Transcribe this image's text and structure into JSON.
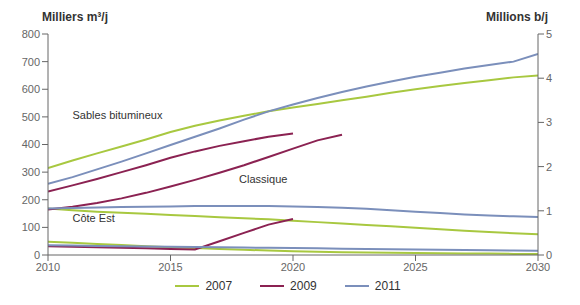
{
  "chart_data": {
    "type": "line",
    "ylabel": "Milliers m³/j",
    "y2label": "Millions b/j",
    "x": [
      2010,
      2011,
      2012,
      2013,
      2014,
      2015,
      2016,
      2017,
      2018,
      2019,
      2020,
      2021,
      2022,
      2023,
      2024,
      2025,
      2026,
      2027,
      2028,
      2029,
      2030
    ],
    "series": [
      {
        "name": "2007",
        "color": "#a8c840",
        "values": [
          315,
          342,
          368,
          393,
          418,
          445,
          468,
          487,
          504,
          520,
          534,
          547,
          560,
          573,
          587,
          600,
          612,
          623,
          633,
          643,
          650
        ]
      },
      {
        "name": "2009",
        "color": "#8b2252",
        "values": [
          230,
          252,
          275,
          300,
          325,
          352,
          375,
          395,
          412,
          428,
          440,
          null,
          null,
          null,
          null,
          null,
          null,
          null,
          null,
          null,
          null
        ]
      },
      {
        "name": "2011",
        "color": "#7b8fbb",
        "values": [
          258,
          282,
          310,
          338,
          368,
          398,
          428,
          458,
          490,
          520,
          545,
          568,
          590,
          610,
          628,
          645,
          660,
          675,
          688,
          700,
          728
        ]
      },
      {
        "name": "2007",
        "color": "#a8c840",
        "values": [
          168,
          162,
          157,
          153,
          149,
          145,
          141,
          137,
          133,
          129,
          124,
          119,
          114,
          109,
          104,
          99,
          93,
          88,
          83,
          79,
          75
        ]
      },
      {
        "name": "2009",
        "color": "#8b2252",
        "values": [
          165,
          175,
          188,
          205,
          225,
          248,
          272,
          298,
          325,
          355,
          385,
          415,
          435,
          null,
          null,
          null,
          null,
          null,
          null,
          null,
          null
        ]
      },
      {
        "name": "2011",
        "color": "#7b8fbb",
        "values": [
          168,
          170,
          172,
          174,
          175,
          176,
          177,
          177,
          177,
          177,
          176,
          174,
          171,
          167,
          162,
          157,
          152,
          147,
          143,
          140,
          138
        ]
      },
      {
        "name": "2007",
        "color": "#a8c840",
        "values": [
          48,
          44,
          40,
          36,
          32,
          28,
          25,
          22,
          19,
          16,
          14,
          12,
          10,
          9,
          8,
          7,
          6,
          5,
          5,
          4,
          4
        ]
      },
      {
        "name": "2009",
        "color": "#8b2252",
        "values": [
          32,
          30,
          28,
          26,
          24,
          22,
          20,
          50,
          80,
          110,
          130,
          null,
          null,
          null,
          null,
          null,
          null,
          null,
          null,
          null,
          null
        ]
      },
      {
        "name": "2011",
        "color": "#7b8fbb",
        "values": [
          35,
          34,
          33,
          32,
          31,
          30,
          29,
          28,
          27,
          26,
          25,
          24,
          23,
          22,
          21,
          20,
          19,
          18,
          17,
          16,
          15
        ]
      }
    ],
    "xlim": [
      2010,
      2030
    ],
    "xticks": [
      2010,
      2015,
      2020,
      2025,
      2030
    ],
    "ylim": [
      0,
      800
    ],
    "yticks": [
      0,
      100,
      200,
      300,
      400,
      500,
      600,
      700,
      800
    ],
    "y2lim": [
      0,
      5
    ],
    "y2ticks": [
      0,
      1,
      2,
      3,
      4,
      5
    ],
    "annotations": [
      {
        "text": "Sables bitumineux",
        "x": 2011.0,
        "y": 480
      },
      {
        "text": "Classique",
        "x": 2017.8,
        "y": 248
      },
      {
        "text": "Côte Est",
        "x": 2011.0,
        "y": 108
      }
    ],
    "grid": false,
    "legend": "bottom"
  }
}
